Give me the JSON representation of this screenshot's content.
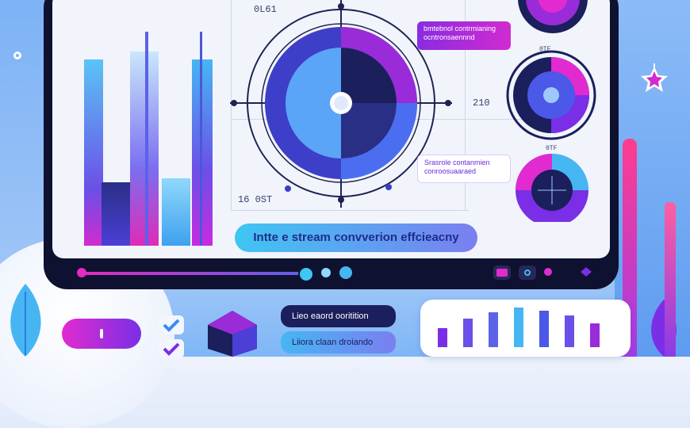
{
  "dashboard": {
    "top_left_label": "0L61",
    "bottom_left_label": "16 0ST",
    "mid_label": "210",
    "callout_top": "bmtebnol contrmianing ocntronsaennnd",
    "callout_bottom": "Srasrole contanmien conroosuaaraed",
    "small_label_a": "0TF",
    "small_label_b": "0TF",
    "banner_text": "Intte e stream convverion effcieacny"
  },
  "bottom": {
    "dark_pill": "Lieo eaord ooritition",
    "light_pill": "Liiora claan droiando"
  },
  "colors": {
    "accent_purple": "#7b2ff2",
    "accent_magenta": "#e12bd0",
    "accent_cyan": "#3fc6f2",
    "frame_navy": "#0f1130"
  },
  "icons": [
    "check-icon",
    "check-icon",
    "cube-icon",
    "star-icon",
    "flower-icon",
    "camera-icon",
    "heart-icon",
    "diamond-icon"
  ]
}
